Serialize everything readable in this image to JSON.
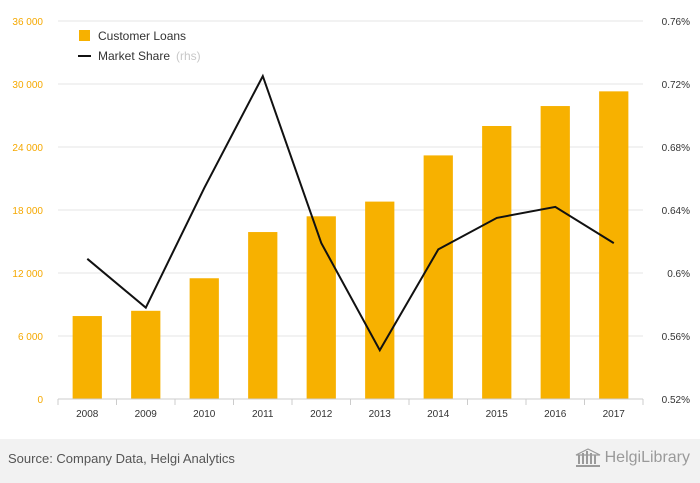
{
  "colors": {
    "bar": "#f7b100",
    "line": "#111111",
    "left_axis_text": "#f5a800",
    "grid": "#e6e6e6"
  },
  "legend": {
    "items": [
      {
        "label": "Customer Loans",
        "suffix": "",
        "marker": "square"
      },
      {
        "label": "Market Share",
        "suffix": "(rhs)",
        "marker": "line"
      }
    ]
  },
  "footer": {
    "source": "Source: Company Data, Helgi Analytics",
    "brand": "HelgiLibrary",
    "brand_icon": "library-building-icon"
  },
  "chart_data": {
    "type": "bar",
    "categories": [
      "2008",
      "2009",
      "2010",
      "2011",
      "2012",
      "2013",
      "2014",
      "2015",
      "2016",
      "2017"
    ],
    "series": [
      {
        "name": "Customer Loans",
        "type": "bar",
        "axis": "left",
        "values": [
          7900,
          8400,
          11500,
          15900,
          17400,
          18800,
          23200,
          26000,
          27900,
          29300
        ]
      },
      {
        "name": "Market Share",
        "type": "line",
        "axis": "right",
        "values": [
          0.609,
          0.578,
          0.654,
          0.725,
          0.619,
          0.551,
          0.615,
          0.635,
          0.642,
          0.619
        ]
      }
    ],
    "y_left": {
      "min": 0,
      "max": 36000,
      "ticks": [
        0,
        6000,
        12000,
        18000,
        24000,
        30000,
        36000
      ],
      "tick_labels": [
        "0",
        "6 000",
        "12 000",
        "18 000",
        "24 000",
        "30 000",
        "36 000"
      ]
    },
    "y_right": {
      "min": 0.52,
      "max": 0.76,
      "ticks": [
        0.52,
        0.56,
        0.6,
        0.64,
        0.68,
        0.72,
        0.76
      ],
      "tick_labels": [
        "0.52%",
        "0.56%",
        "0.6%",
        "0.64%",
        "0.68%",
        "0.72%",
        "0.76%"
      ]
    },
    "grid": true,
    "legend_position": "top-left"
  }
}
